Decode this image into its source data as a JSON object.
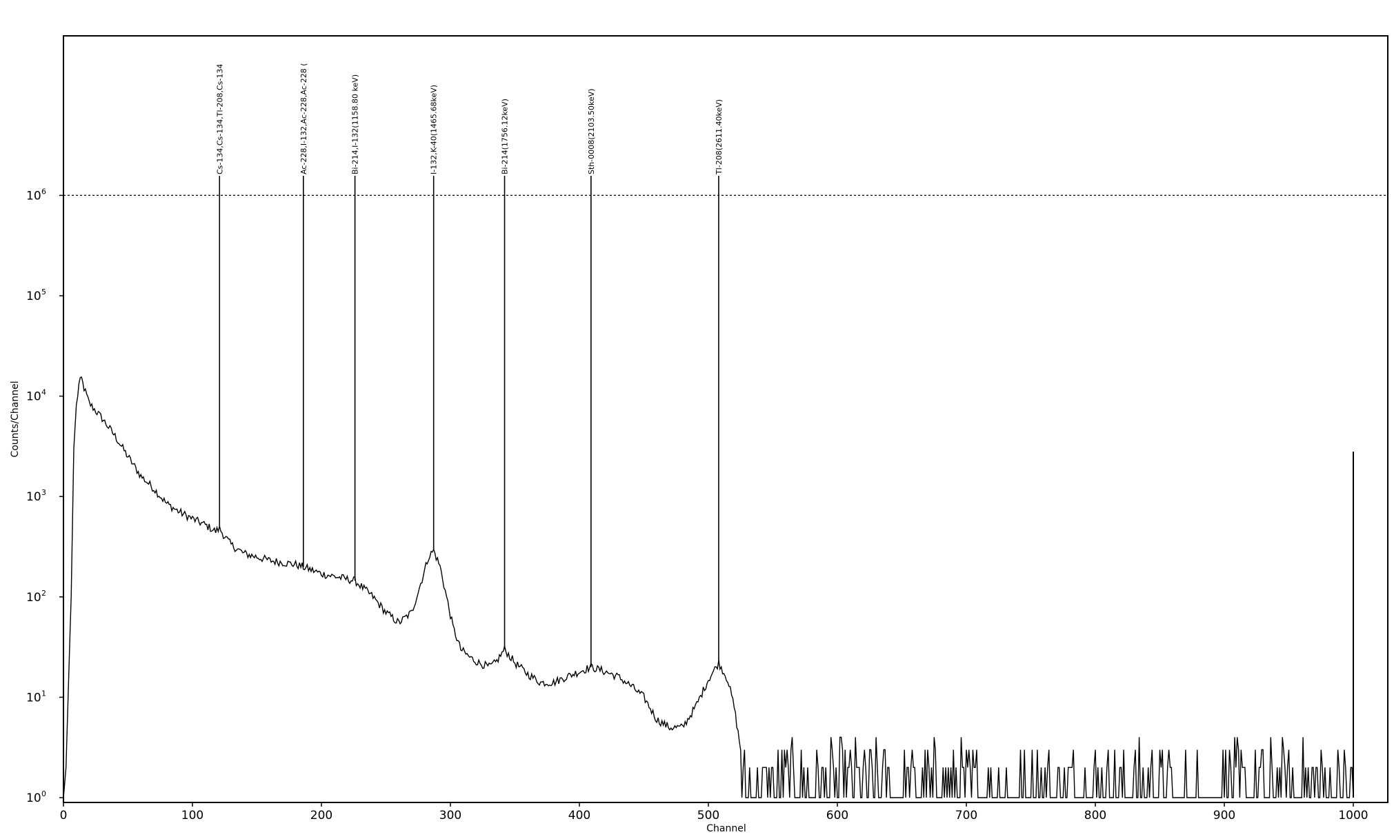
{
  "chart_data": {
    "type": "line",
    "title": "",
    "xlabel": "Channel",
    "ylabel": "Counts/Channel",
    "xlim": [
      0,
      1024
    ],
    "ylim_log10": [
      0,
      7
    ],
    "y_scale": "log",
    "x_ticks": [
      {
        "value": 0,
        "label": "0"
      },
      {
        "value": 100,
        "label": "100"
      },
      {
        "value": 200,
        "label": "200"
      },
      {
        "value": 300,
        "label": "300"
      },
      {
        "value": 400,
        "label": "400"
      },
      {
        "value": 500,
        "label": "500"
      },
      {
        "value": 600,
        "label": "600"
      },
      {
        "value": 700,
        "label": "700"
      },
      {
        "value": 800,
        "label": "800"
      },
      {
        "value": 900,
        "label": "900"
      },
      {
        "value": 1000,
        "label": "1000"
      }
    ],
    "y_ticks": [
      {
        "exp": 0,
        "base": "10",
        "sup": "0"
      },
      {
        "exp": 1,
        "base": "10",
        "sup": "1"
      },
      {
        "exp": 2,
        "base": "10",
        "sup": "2"
      },
      {
        "exp": 3,
        "base": "10",
        "sup": "3"
      },
      {
        "exp": 4,
        "base": "10",
        "sup": "4"
      },
      {
        "exp": 5,
        "base": "10",
        "sup": "5"
      },
      {
        "exp": 6,
        "base": "10",
        "sup": "6"
      }
    ],
    "reference_line": {
      "y": 1000000,
      "style": "dotted"
    },
    "peak_markers": [
      {
        "channel": 121,
        "label": "Cs-134,Cs-134,Tl-208,Cs-134"
      },
      {
        "channel": 186,
        "label": "Ac-228,I-132,Ac-228,Ac-228 ("
      },
      {
        "channel": 226,
        "label": "Bi-214,I-132(1158.80 keV)"
      },
      {
        "channel": 287,
        "label": "I-132,K-40(1465.68keV)"
      },
      {
        "channel": 342,
        "label": "Bi-214(1756.12keV)"
      },
      {
        "channel": 409,
        "label": "Sth-0008(2103.50keV)"
      },
      {
        "channel": 508,
        "label": "Tl-208(2611.40keV)"
      }
    ],
    "series": [
      {
        "points": [
          [
            0,
            1
          ],
          [
            2,
            2
          ],
          [
            4,
            15
          ],
          [
            6,
            100
          ],
          [
            8,
            3000
          ],
          [
            10,
            8000
          ],
          [
            12,
            13000
          ],
          [
            14,
            15000
          ],
          [
            16,
            12000
          ],
          [
            20,
            8500
          ],
          [
            30,
            6000
          ],
          [
            40,
            4000
          ],
          [
            50,
            2500
          ],
          [
            60,
            1600
          ],
          [
            70,
            1200
          ],
          [
            80,
            850
          ],
          [
            90,
            700
          ],
          [
            100,
            600
          ],
          [
            110,
            520
          ],
          [
            118,
            450
          ],
          [
            121,
            480
          ],
          [
            125,
            400
          ],
          [
            130,
            330
          ],
          [
            140,
            270
          ],
          [
            150,
            250
          ],
          [
            160,
            230
          ],
          [
            170,
            220
          ],
          [
            180,
            210
          ],
          [
            185,
            200
          ],
          [
            190,
            190
          ],
          [
            200,
            170
          ],
          [
            210,
            160
          ],
          [
            220,
            150
          ],
          [
            226,
            145
          ],
          [
            230,
            130
          ],
          [
            240,
            100
          ],
          [
            250,
            70
          ],
          [
            260,
            55
          ],
          [
            270,
            70
          ],
          [
            278,
            150
          ],
          [
            283,
            250
          ],
          [
            287,
            290
          ],
          [
            292,
            200
          ],
          [
            297,
            100
          ],
          [
            302,
            50
          ],
          [
            308,
            30
          ],
          [
            315,
            25
          ],
          [
            322,
            22
          ],
          [
            330,
            20
          ],
          [
            335,
            22
          ],
          [
            342,
            30
          ],
          [
            350,
            22
          ],
          [
            360,
            17
          ],
          [
            370,
            14
          ],
          [
            380,
            14
          ],
          [
            390,
            16
          ],
          [
            400,
            18
          ],
          [
            409,
            20
          ],
          [
            420,
            18
          ],
          [
            430,
            16
          ],
          [
            440,
            13
          ],
          [
            450,
            10
          ],
          [
            460,
            6
          ],
          [
            470,
            5
          ],
          [
            480,
            5
          ],
          [
            490,
            8
          ],
          [
            500,
            15
          ],
          [
            508,
            22
          ],
          [
            515,
            15
          ],
          [
            520,
            8
          ],
          [
            525,
            3
          ],
          [
            530,
            1
          ],
          [
            1000,
            1
          ]
        ]
      }
    ],
    "spike": {
      "channel": 1000,
      "value": 2800
    }
  }
}
